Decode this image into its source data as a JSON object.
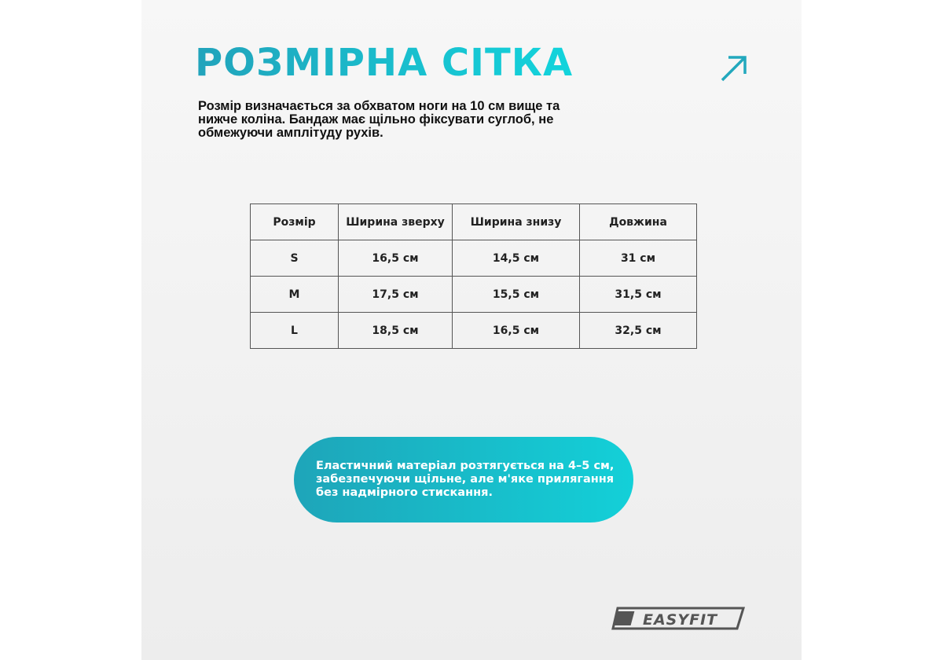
{
  "title": "РОЗМІРНА СІТКА",
  "arrow_icon": "arrow-up-right-icon",
  "description": "Розмір визначається за обхватом ноги на 10 см вище та нижче коліна. Бандаж має щільно фіксувати суглоб, не обмежуючи амплітуду рухів.",
  "table": {
    "headers": [
      "Розмір",
      "Ширина зверху",
      "Ширина знизу",
      "Довжина"
    ],
    "rows": [
      [
        "S",
        "16,5 см",
        "14,5 см",
        "31 см"
      ],
      [
        "M",
        "17,5 см",
        "15,5 см",
        "31,5 см"
      ],
      [
        "L",
        "18,5 см",
        "16,5 см",
        "32,5 см"
      ]
    ]
  },
  "note": "Еластичний матеріал розтягується на 4–5 см, забезпечуючи щільне, але м'яке прилягання без надмірного стискання.",
  "logo": "EASYFIT",
  "colors": {
    "accent_start": "#22a3bb",
    "accent_end": "#12d4dc"
  }
}
